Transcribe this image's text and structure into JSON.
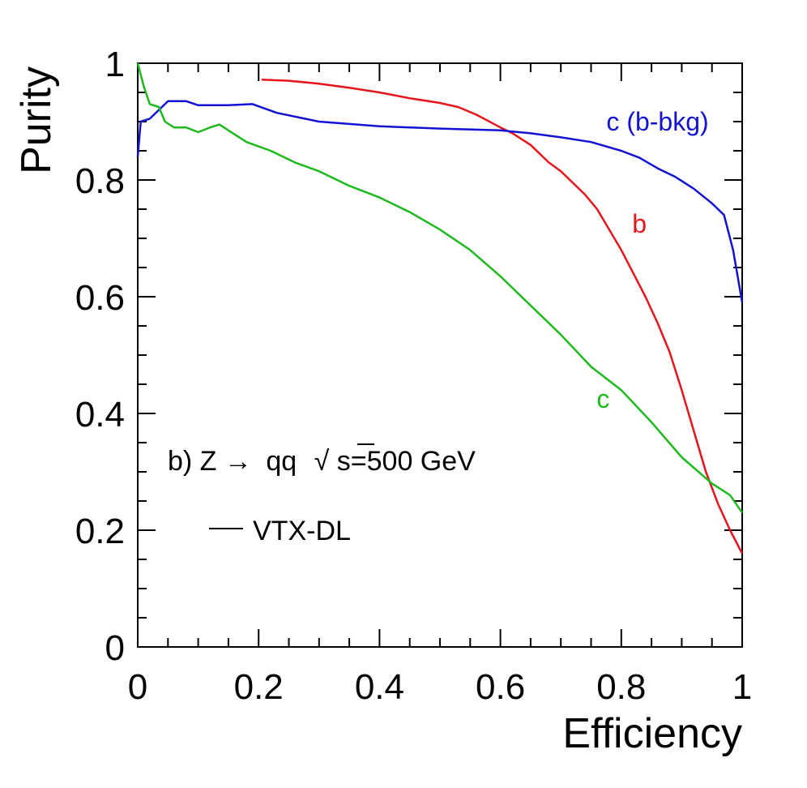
{
  "chart_data": {
    "type": "line",
    "xlabel": "Efficiency",
    "ylabel": "Purity",
    "xlim": [
      0,
      1
    ],
    "ylim": [
      0,
      1
    ],
    "x_ticks": [
      "0",
      "0.2",
      "0.4",
      "0.6",
      "0.8",
      "1"
    ],
    "y_ticks": [
      "0",
      "0.2",
      "0.4",
      "0.6",
      "0.8",
      "1"
    ],
    "grid": false,
    "annotation": {
      "prefix": "b) Z",
      "arrow": "→",
      "process": "qq",
      "sqrt": "√",
      "energy": "s=500 GeV"
    },
    "legend": {
      "entry": "VTX-DL",
      "color": "#000000"
    },
    "series": [
      {
        "name": "b",
        "color": "#e8141b",
        "label_at": [
          0.83,
          0.71
        ],
        "points": [
          [
            0.205,
            0.972
          ],
          [
            0.25,
            0.97
          ],
          [
            0.3,
            0.965
          ],
          [
            0.35,
            0.958
          ],
          [
            0.4,
            0.95
          ],
          [
            0.45,
            0.94
          ],
          [
            0.5,
            0.932
          ],
          [
            0.53,
            0.925
          ],
          [
            0.56,
            0.912
          ],
          [
            0.6,
            0.89
          ],
          [
            0.62,
            0.88
          ],
          [
            0.65,
            0.86
          ],
          [
            0.68,
            0.83
          ],
          [
            0.7,
            0.815
          ],
          [
            0.72,
            0.795
          ],
          [
            0.74,
            0.775
          ],
          [
            0.76,
            0.75
          ],
          [
            0.78,
            0.715
          ],
          [
            0.8,
            0.68
          ],
          [
            0.82,
            0.64
          ],
          [
            0.84,
            0.6
          ],
          [
            0.86,
            0.555
          ],
          [
            0.88,
            0.505
          ],
          [
            0.9,
            0.44
          ],
          [
            0.92,
            0.37
          ],
          [
            0.94,
            0.3
          ],
          [
            0.96,
            0.245
          ],
          [
            0.98,
            0.2
          ],
          [
            1.0,
            0.16
          ]
        ]
      },
      {
        "name": "c (b-bkg)",
        "color": "#1212d6",
        "label_at": [
          0.86,
          0.885
        ],
        "points": [
          [
            0.0,
            0.84
          ],
          [
            0.005,
            0.9
          ],
          [
            0.02,
            0.905
          ],
          [
            0.05,
            0.935
          ],
          [
            0.08,
            0.935
          ],
          [
            0.1,
            0.928
          ],
          [
            0.15,
            0.928
          ],
          [
            0.19,
            0.93
          ],
          [
            0.23,
            0.915
          ],
          [
            0.3,
            0.9
          ],
          [
            0.4,
            0.892
          ],
          [
            0.5,
            0.888
          ],
          [
            0.6,
            0.885
          ],
          [
            0.65,
            0.88
          ],
          [
            0.7,
            0.873
          ],
          [
            0.75,
            0.865
          ],
          [
            0.8,
            0.85
          ],
          [
            0.83,
            0.838
          ],
          [
            0.86,
            0.82
          ],
          [
            0.89,
            0.805
          ],
          [
            0.92,
            0.785
          ],
          [
            0.95,
            0.76
          ],
          [
            0.97,
            0.74
          ],
          [
            0.985,
            0.68
          ],
          [
            1.0,
            0.59
          ]
        ]
      },
      {
        "name": "c",
        "color": "#1cba1c",
        "label_at": [
          0.77,
          0.41
        ],
        "points": [
          [
            0.0,
            1.0
          ],
          [
            0.01,
            0.96
          ],
          [
            0.02,
            0.93
          ],
          [
            0.035,
            0.925
          ],
          [
            0.045,
            0.9
          ],
          [
            0.06,
            0.89
          ],
          [
            0.08,
            0.89
          ],
          [
            0.1,
            0.882
          ],
          [
            0.12,
            0.89
          ],
          [
            0.135,
            0.895
          ],
          [
            0.15,
            0.885
          ],
          [
            0.18,
            0.865
          ],
          [
            0.22,
            0.85
          ],
          [
            0.26,
            0.83
          ],
          [
            0.3,
            0.815
          ],
          [
            0.35,
            0.79
          ],
          [
            0.4,
            0.77
          ],
          [
            0.45,
            0.745
          ],
          [
            0.5,
            0.715
          ],
          [
            0.55,
            0.68
          ],
          [
            0.6,
            0.635
          ],
          [
            0.65,
            0.585
          ],
          [
            0.7,
            0.535
          ],
          [
            0.75,
            0.48
          ],
          [
            0.8,
            0.44
          ],
          [
            0.85,
            0.385
          ],
          [
            0.9,
            0.325
          ],
          [
            0.95,
            0.28
          ],
          [
            0.98,
            0.26
          ],
          [
            1.0,
            0.23
          ]
        ]
      }
    ]
  }
}
